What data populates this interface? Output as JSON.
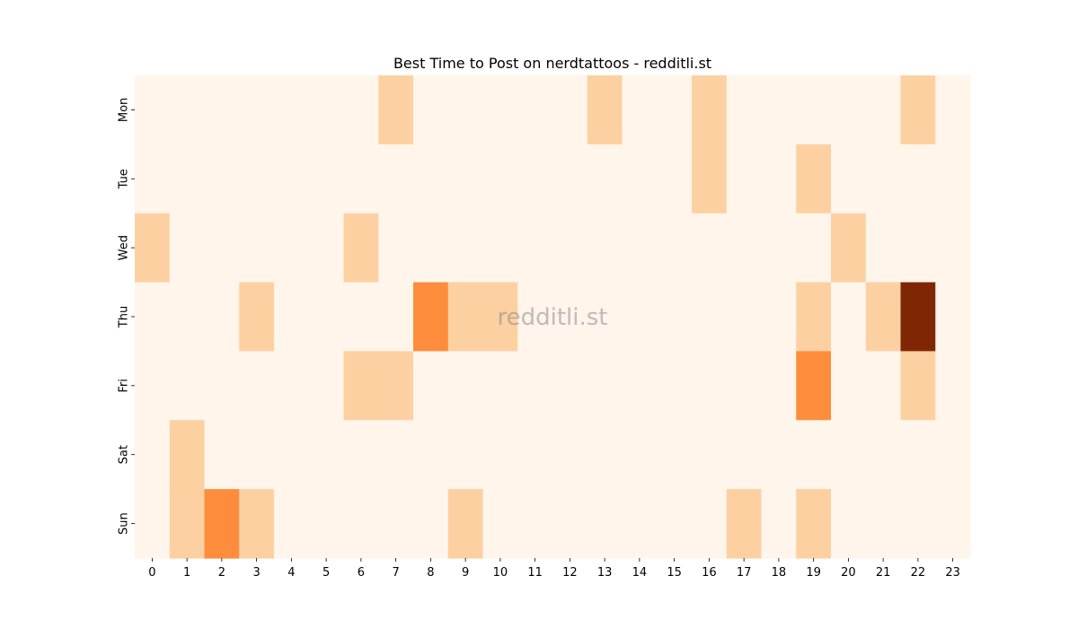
{
  "chart_data": {
    "type": "heatmap",
    "title": "Best Time to Post on nerdtattoos - redditli.st",
    "xlabel": "",
    "ylabel": "",
    "x_categories": [
      "0",
      "1",
      "2",
      "3",
      "4",
      "5",
      "6",
      "7",
      "8",
      "9",
      "10",
      "11",
      "12",
      "13",
      "14",
      "15",
      "16",
      "17",
      "18",
      "19",
      "20",
      "21",
      "22",
      "23"
    ],
    "y_categories": [
      "Mon",
      "Tue",
      "Wed",
      "Thu",
      "Fri",
      "Sat",
      "Sun"
    ],
    "values": [
      [
        0,
        0,
        0,
        0,
        0,
        0,
        0,
        1,
        0,
        0,
        0,
        0,
        0,
        1,
        0,
        0,
        1,
        0,
        0,
        0,
        0,
        0,
        1,
        0
      ],
      [
        0,
        0,
        0,
        0,
        0,
        0,
        0,
        0,
        0,
        0,
        0,
        0,
        0,
        0,
        0,
        0,
        1,
        0,
        0,
        1,
        0,
        0,
        0,
        0
      ],
      [
        1,
        0,
        0,
        0,
        0,
        0,
        1,
        0,
        0,
        0,
        0,
        0,
        0,
        0,
        0,
        0,
        0,
        0,
        0,
        0,
        1,
        0,
        0,
        0
      ],
      [
        0,
        0,
        0,
        1,
        0,
        0,
        0,
        0,
        2,
        1,
        1,
        0,
        0,
        0,
        0,
        0,
        0,
        0,
        0,
        1,
        0,
        1,
        4,
        0
      ],
      [
        0,
        0,
        0,
        0,
        0,
        0,
        1,
        1,
        0,
        0,
        0,
        0,
        0,
        0,
        0,
        0,
        0,
        0,
        0,
        2,
        0,
        0,
        1,
        0
      ],
      [
        0,
        1,
        0,
        0,
        0,
        0,
        0,
        0,
        0,
        0,
        0,
        0,
        0,
        0,
        0,
        0,
        0,
        0,
        0,
        0,
        0,
        0,
        0,
        0
      ],
      [
        0,
        1,
        2,
        1,
        0,
        0,
        0,
        0,
        0,
        1,
        0,
        0,
        0,
        0,
        0,
        0,
        0,
        1,
        0,
        1,
        0,
        0,
        0,
        0
      ]
    ],
    "value_range": [
      0,
      4
    ],
    "colormap": "Oranges",
    "color_scale": [
      "#fff5eb",
      "#fdd0a2",
      "#fd8d3c",
      "#d94801",
      "#7f2704"
    ],
    "grid": false,
    "legend": "none",
    "watermark": "redditli.st"
  }
}
